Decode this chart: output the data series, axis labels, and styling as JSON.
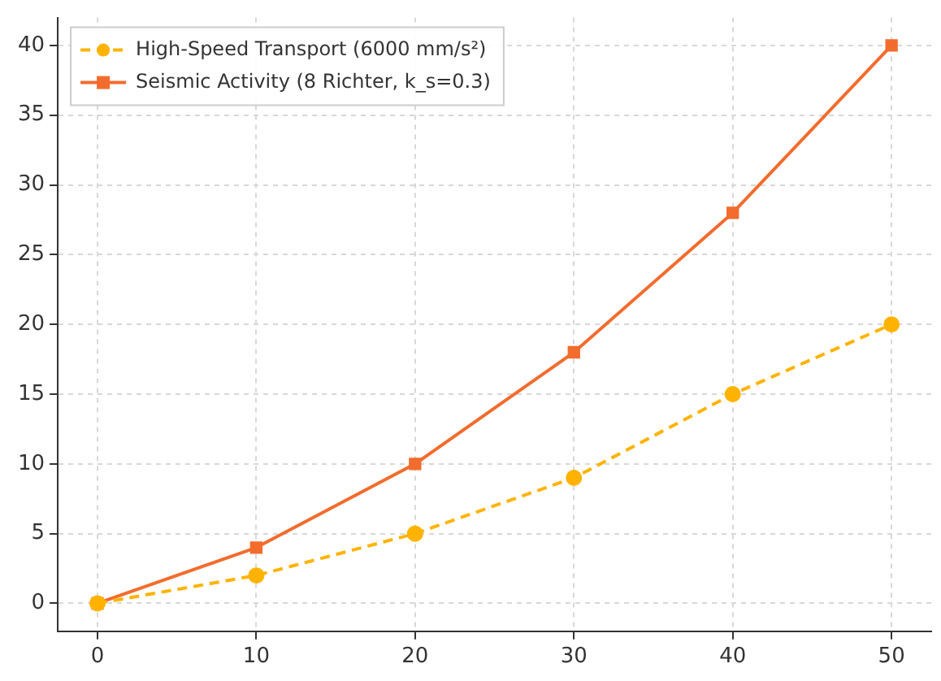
{
  "chart_data": {
    "type": "line",
    "x": [
      0,
      10,
      20,
      30,
      40,
      50
    ],
    "series": [
      {
        "name": "High-Speed Transport (6000 mm/s²)",
        "color": "#ffb300",
        "values": [
          0,
          2,
          5,
          9,
          15,
          20
        ],
        "line_style": "dashed",
        "marker": "circle"
      },
      {
        "name": "Seismic Activity (8 Richter, k_s=0.3)",
        "color": "#f26c2d",
        "values": [
          0,
          4,
          10,
          18,
          28,
          40
        ],
        "line_style": "solid",
        "marker": "square"
      }
    ],
    "xlim": [
      -2.5,
      52.5
    ],
    "xticks": [
      0,
      10,
      20,
      30,
      40,
      50
    ],
    "ylim": [
      -2,
      42
    ],
    "yticks": [
      0,
      5,
      10,
      15,
      20,
      25,
      30,
      35,
      40
    ],
    "grid": true,
    "legend": "top left"
  }
}
